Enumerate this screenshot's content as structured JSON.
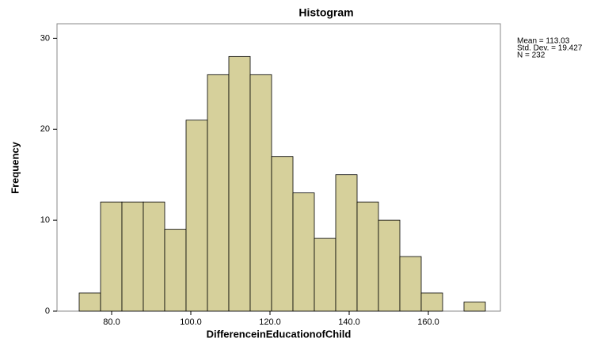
{
  "chart_data": {
    "type": "histogram",
    "title": "Histogram",
    "x_label": "DifferenceinEducationofChild",
    "y_label": "Frequency",
    "annotations": [
      "Mean = 113.03",
      "Std. Dev. = 19.427",
      "N = 232"
    ],
    "bins": [
      71.8,
      77.2,
      82.6,
      88.0,
      93.4,
      98.8,
      104.2,
      109.6,
      115.0,
      120.4,
      125.8,
      131.2,
      136.6,
      142.0,
      147.4,
      152.8,
      158.2,
      163.6,
      169.0,
      174.4
    ],
    "values": [
      2,
      12,
      12,
      12,
      9,
      21,
      26,
      28,
      26,
      17,
      13,
      8,
      15,
      12,
      10,
      6,
      2,
      0,
      1
    ],
    "color": "#d6d09b",
    "xlim": [
      66.2,
      178.2
    ],
    "xticks": [
      {
        "value": 80,
        "label": "80.0"
      },
      {
        "value": 100,
        "label": "100.0"
      },
      {
        "value": 120,
        "label": "120.0"
      },
      {
        "value": 140,
        "label": "140.0"
      },
      {
        "value": 160,
        "label": "160.0"
      }
    ],
    "ylim": [
      0,
      31.6
    ],
    "yticks": [
      0,
      10,
      20,
      30
    ],
    "grid": false
  }
}
